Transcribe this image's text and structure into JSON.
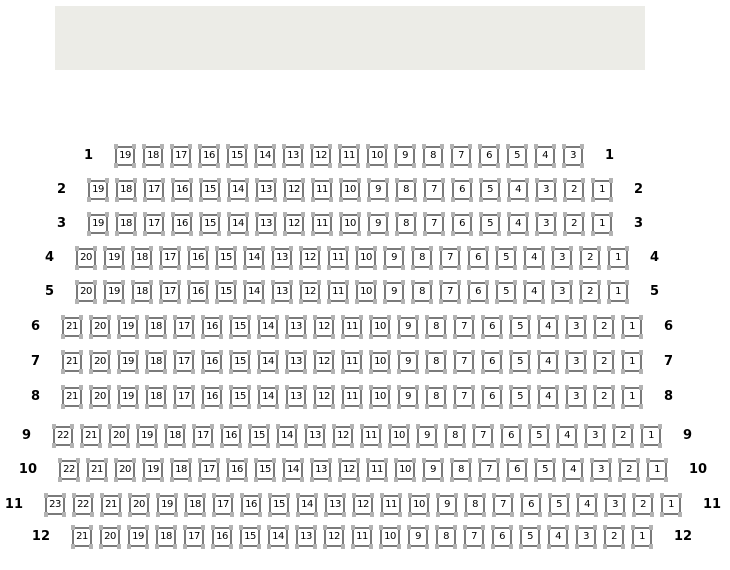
{
  "stage": {
    "label": ""
  },
  "colors": {
    "stage_bg": "#ECECE7",
    "seat_border": "#7A7A7A",
    "seat_corner": "#B3B3B3",
    "seat_bg": "#FFFFFF",
    "label_text": "#000000"
  },
  "seating": {
    "rows": [
      {
        "label": "1",
        "seats": [
          19,
          18,
          17,
          16,
          15,
          14,
          13,
          12,
          11,
          10,
          9,
          8,
          7,
          6,
          5,
          4,
          3
        ]
      },
      {
        "label": "2",
        "seats": [
          19,
          18,
          17,
          16,
          15,
          14,
          13,
          12,
          11,
          10,
          9,
          8,
          7,
          6,
          5,
          4,
          3,
          2,
          1
        ]
      },
      {
        "label": "3",
        "seats": [
          19,
          18,
          17,
          16,
          15,
          14,
          13,
          12,
          11,
          10,
          9,
          8,
          7,
          6,
          5,
          4,
          3,
          2,
          1
        ]
      },
      {
        "label": "4",
        "seats": [
          20,
          19,
          18,
          17,
          16,
          15,
          14,
          13,
          12,
          11,
          10,
          9,
          8,
          7,
          6,
          5,
          4,
          3,
          2,
          1
        ]
      },
      {
        "label": "5",
        "seats": [
          20,
          19,
          18,
          17,
          16,
          15,
          14,
          13,
          12,
          11,
          10,
          9,
          8,
          7,
          6,
          5,
          4,
          3,
          2,
          1
        ]
      },
      {
        "label": "6",
        "seats": [
          21,
          20,
          19,
          18,
          17,
          16,
          15,
          14,
          13,
          12,
          11,
          10,
          9,
          8,
          7,
          6,
          5,
          4,
          3,
          2,
          1
        ]
      },
      {
        "label": "7",
        "seats": [
          21,
          20,
          19,
          18,
          17,
          16,
          15,
          14,
          13,
          12,
          11,
          10,
          9,
          8,
          7,
          6,
          5,
          4,
          3,
          2,
          1
        ]
      },
      {
        "label": "8",
        "seats": [
          21,
          20,
          19,
          18,
          17,
          16,
          15,
          14,
          13,
          12,
          11,
          10,
          9,
          8,
          7,
          6,
          5,
          4,
          3,
          2,
          1
        ]
      },
      {
        "label": "9",
        "seats": [
          22,
          21,
          20,
          19,
          18,
          17,
          16,
          15,
          14,
          13,
          12,
          11,
          10,
          9,
          8,
          7,
          6,
          5,
          4,
          3,
          2,
          1
        ]
      },
      {
        "label": "10",
        "seats": [
          22,
          21,
          20,
          19,
          18,
          17,
          16,
          15,
          14,
          13,
          12,
          11,
          10,
          9,
          8,
          7,
          6,
          5,
          4,
          3,
          2,
          1
        ]
      },
      {
        "label": "11",
        "seats": [
          23,
          22,
          21,
          20,
          19,
          18,
          17,
          16,
          15,
          14,
          13,
          12,
          11,
          10,
          9,
          8,
          7,
          6,
          5,
          4,
          3,
          2,
          1
        ]
      },
      {
        "label": "12",
        "seats": [
          21,
          20,
          19,
          18,
          17,
          16,
          15,
          14,
          13,
          12,
          11,
          10,
          9,
          8,
          7,
          6,
          5,
          4,
          3,
          2,
          1
        ]
      }
    ]
  }
}
